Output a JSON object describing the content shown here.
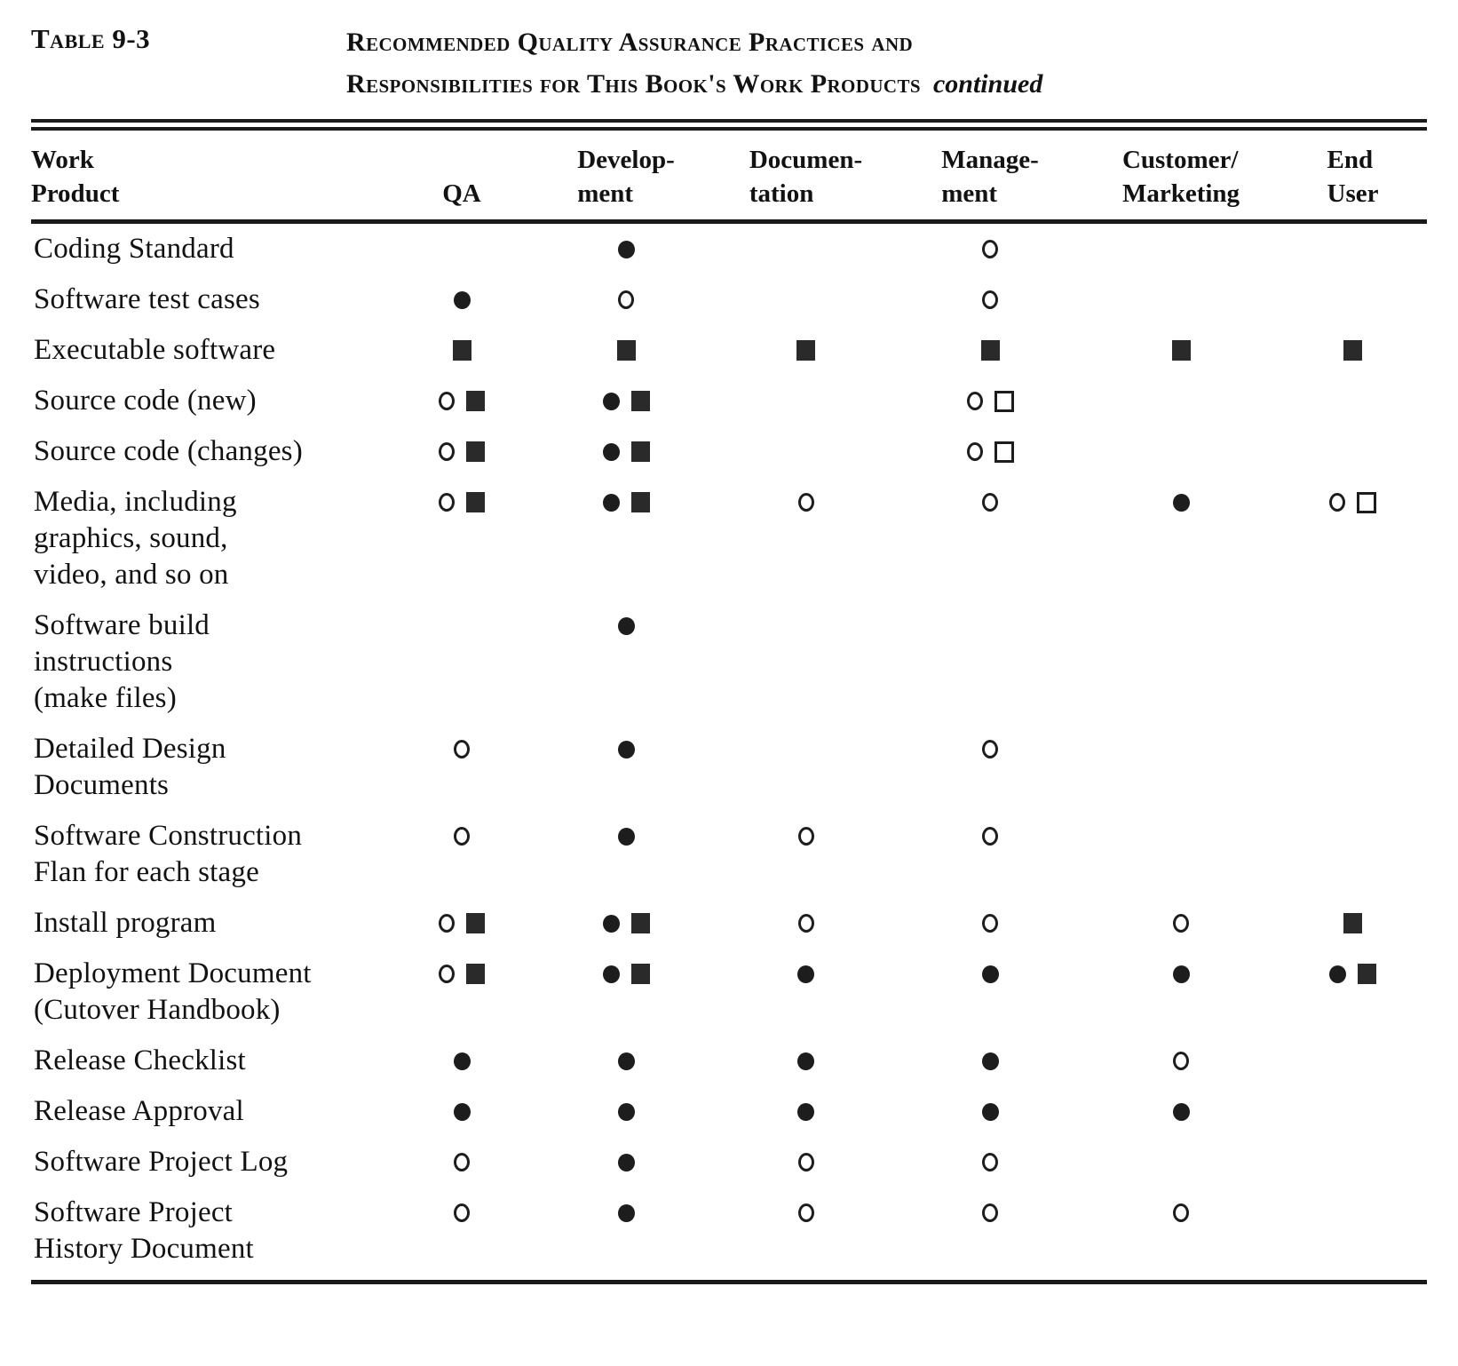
{
  "caption": {
    "label": "Table 9-3",
    "title_line1": "Recommended Quality Assurance Practices and",
    "title_line2": "Responsibilities for This Book's Work Products",
    "continued": "continued"
  },
  "symbols": {
    "filled-circle": "●",
    "open-circle": "○",
    "filled-square": "■",
    "open-square": "□"
  },
  "table": {
    "columns": [
      {
        "id": "work-product",
        "lines": [
          "Work",
          "Product"
        ]
      },
      {
        "id": "qa",
        "lines": [
          "QA"
        ]
      },
      {
        "id": "development",
        "lines": [
          "Develop-",
          "ment"
        ]
      },
      {
        "id": "documentation",
        "lines": [
          "Documen-",
          "tation"
        ]
      },
      {
        "id": "management",
        "lines": [
          "Manage-",
          "ment"
        ]
      },
      {
        "id": "customer-marketing",
        "lines": [
          "Customer/",
          "Marketing"
        ]
      },
      {
        "id": "end-user",
        "lines": [
          "End",
          "User"
        ]
      }
    ],
    "rows": [
      {
        "label_lines": [
          "Coding Standard"
        ],
        "cells": [
          [],
          [
            "filled-circle"
          ],
          [],
          [
            "open-circle"
          ],
          [],
          []
        ]
      },
      {
        "label_lines": [
          "Software test cases"
        ],
        "cells": [
          [
            "filled-circle"
          ],
          [
            "open-circle"
          ],
          [],
          [
            "open-circle"
          ],
          [],
          []
        ]
      },
      {
        "label_lines": [
          "Executable software"
        ],
        "cells": [
          [
            "filled-square"
          ],
          [
            "filled-square"
          ],
          [
            "filled-square"
          ],
          [
            "filled-square"
          ],
          [
            "filled-square"
          ],
          [
            "filled-square"
          ]
        ]
      },
      {
        "label_lines": [
          "Source code (new)"
        ],
        "cells": [
          [
            "open-circle",
            "filled-square"
          ],
          [
            "filled-circle",
            "filled-square"
          ],
          [],
          [
            "open-circle",
            "open-square"
          ],
          [],
          []
        ]
      },
      {
        "label_lines": [
          "Source code (changes)"
        ],
        "cells": [
          [
            "open-circle",
            "filled-square"
          ],
          [
            "filled-circle",
            "filled-square"
          ],
          [],
          [
            "open-circle",
            "open-square"
          ],
          [],
          []
        ]
      },
      {
        "label_lines": [
          "Media, including",
          "graphics, sound,",
          "video, and so on"
        ],
        "cells": [
          [
            "open-circle",
            "filled-square"
          ],
          [
            "filled-circle",
            "filled-square"
          ],
          [
            "open-circle"
          ],
          [
            "open-circle"
          ],
          [
            "filled-circle"
          ],
          [
            "open-circle",
            "open-square"
          ]
        ]
      },
      {
        "label_lines": [
          "Software build",
          "instructions",
          "(make files)"
        ],
        "cells": [
          [],
          [
            "filled-circle"
          ],
          [],
          [],
          [],
          []
        ]
      },
      {
        "label_lines": [
          "Detailed Design",
          "Documents"
        ],
        "cells": [
          [
            "open-circle"
          ],
          [
            "filled-circle"
          ],
          [],
          [
            "open-circle"
          ],
          [],
          []
        ]
      },
      {
        "label_lines": [
          "Software Construction",
          "Flan for each stage"
        ],
        "cells": [
          [
            "open-circle"
          ],
          [
            "filled-circle"
          ],
          [
            "open-circle"
          ],
          [
            "open-circle"
          ],
          [],
          []
        ]
      },
      {
        "label_lines": [
          "Install program"
        ],
        "cells": [
          [
            "open-circle",
            "filled-square"
          ],
          [
            "filled-circle",
            "filled-square"
          ],
          [
            "open-circle"
          ],
          [
            "open-circle"
          ],
          [
            "open-circle"
          ],
          [
            "filled-square"
          ]
        ]
      },
      {
        "label_lines": [
          "Deployment Document",
          "(Cutover Handbook)"
        ],
        "cells": [
          [
            "open-circle",
            "filled-square"
          ],
          [
            "filled-circle",
            "filled-square"
          ],
          [
            "filled-circle"
          ],
          [
            "filled-circle"
          ],
          [
            "filled-circle"
          ],
          [
            "filled-circle",
            "filled-square"
          ]
        ]
      },
      {
        "label_lines": [
          "Release Checklist"
        ],
        "cells": [
          [
            "filled-circle"
          ],
          [
            "filled-circle"
          ],
          [
            "filled-circle"
          ],
          [
            "filled-circle"
          ],
          [
            "open-circle"
          ],
          []
        ]
      },
      {
        "label_lines": [
          "Release Approval"
        ],
        "cells": [
          [
            "filled-circle"
          ],
          [
            "filled-circle"
          ],
          [
            "filled-circle"
          ],
          [
            "filled-circle"
          ],
          [
            "filled-circle"
          ],
          []
        ]
      },
      {
        "label_lines": [
          "Software Project Log"
        ],
        "cells": [
          [
            "open-circle"
          ],
          [
            "filled-circle"
          ],
          [
            "open-circle"
          ],
          [
            "open-circle"
          ],
          [],
          []
        ]
      },
      {
        "label_lines": [
          "Software Project",
          "History Document"
        ],
        "cells": [
          [
            "open-circle"
          ],
          [
            "filled-circle"
          ],
          [
            "open-circle"
          ],
          [
            "open-circle"
          ],
          [
            "open-circle"
          ],
          []
        ]
      }
    ]
  }
}
